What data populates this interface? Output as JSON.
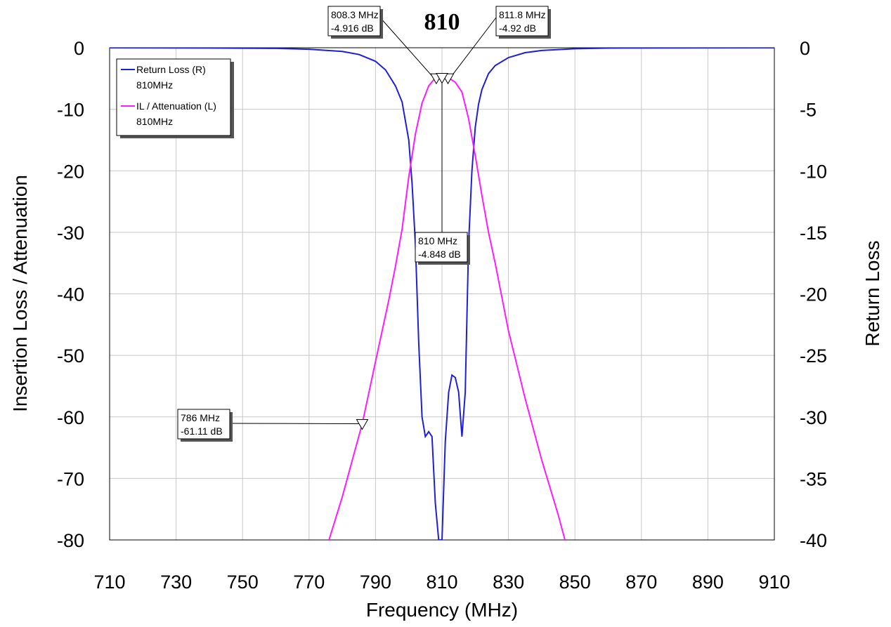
{
  "chart_data": {
    "type": "line",
    "title": "810",
    "xlabel": "Frequency (MHz)",
    "ylabel_left": "Insertion Loss / Attenuation",
    "ylabel_right": "Return Loss",
    "xlim": [
      710,
      910
    ],
    "ylim_left": [
      -80,
      0
    ],
    "ylim_right": [
      -40,
      0
    ],
    "x_ticks": [
      "710",
      "730",
      "750",
      "770",
      "790",
      "810",
      "830",
      "850",
      "870",
      "890",
      "910"
    ],
    "y_ticks_left": [
      "0",
      "-10",
      "-20",
      "-30",
      "-40",
      "-50",
      "-60",
      "-70",
      "-80"
    ],
    "y_ticks_right": [
      "0",
      "-5",
      "-10",
      "-15",
      "-20",
      "-25",
      "-30",
      "-35",
      "-40"
    ],
    "grid": true,
    "legend": {
      "placement": "top-left",
      "entries": [
        {
          "label": "Return Loss (R)",
          "sub": "810MHz",
          "color": "#1f1fd6"
        },
        {
          "label": "IL / Attenuation (L)",
          "sub": "810MHz",
          "color": "#ff1aff"
        }
      ]
    },
    "series": [
      {
        "name": "Return Loss (R)",
        "axis": "right",
        "color": "#1f1fd6",
        "x": [
          710,
          740,
          760,
          770,
          780,
          785,
          790,
          793,
          796,
          798,
          800,
          801,
          802,
          803,
          804,
          805,
          806,
          807,
          808,
          809,
          810,
          811,
          812,
          813,
          814,
          815,
          816,
          817,
          818,
          819,
          820,
          821,
          822,
          824,
          826,
          830,
          835,
          840,
          850,
          860,
          880,
          910
        ],
        "y": [
          0,
          -0.02,
          -0.05,
          -0.12,
          -0.3,
          -0.55,
          -1.1,
          -1.8,
          -3.1,
          -4.4,
          -7.5,
          -11,
          -16,
          -24,
          -30,
          -31.6,
          -31.2,
          -31.6,
          -37,
          -40,
          -40,
          -32,
          -28,
          -26.6,
          -26.8,
          -28,
          -31.6,
          -28,
          -16,
          -10,
          -6.5,
          -4.6,
          -3.4,
          -2.1,
          -1.45,
          -0.8,
          -0.4,
          -0.22,
          -0.08,
          -0.03,
          -0.01,
          0
        ]
      },
      {
        "name": "IL / Attenuation (L)",
        "axis": "left",
        "color": "#ff1aff",
        "x": [
          776,
          780,
          786,
          790,
          794,
          796,
          798,
          800,
          802,
          804,
          806,
          808,
          810,
          812,
          814,
          816,
          818,
          820,
          822,
          824,
          826,
          830,
          835,
          840,
          845,
          847
        ],
        "y": [
          -80,
          -73,
          -61.1,
          -51,
          -41,
          -35.5,
          -29.5,
          -21,
          -14,
          -9,
          -6.2,
          -4.9,
          -4.85,
          -4.9,
          -5.6,
          -7.2,
          -11.5,
          -17.5,
          -24,
          -30,
          -35,
          -46,
          -57,
          -67,
          -76,
          -80
        ]
      }
    ],
    "markers": [
      {
        "freq": "808.3 MHz",
        "value": "-4.916 dB",
        "x": 808.3,
        "y": -4.916
      },
      {
        "freq": "811.8 MHz",
        "value": "-4.92 dB",
        "x": 811.8,
        "y": -4.92
      },
      {
        "freq": "810 MHz",
        "value": "-4.848 dB",
        "x": 810,
        "y": -4.848
      },
      {
        "freq": "786 MHz",
        "value": "-61.11 dB",
        "x": 786,
        "y": -61.11
      }
    ]
  }
}
